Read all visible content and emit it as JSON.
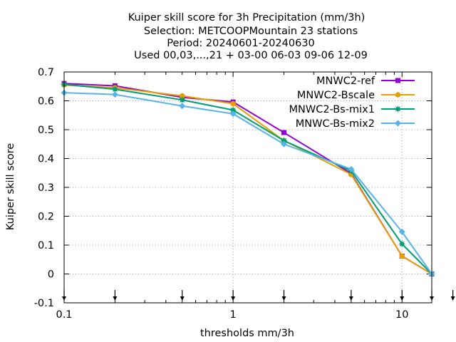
{
  "chart_data": {
    "type": "line",
    "title_lines": [
      "Kuiper skill score  for 3h Precipitation (mm/3h)",
      "Selection: METCOOPMountain     23 stations",
      "Period: 20240601-20240630",
      "Used 00,03,...,21 + 03-00 06-03 09-06 12-09"
    ],
    "xlabel": "thresholds mm/3h",
    "ylabel": "Kuiper skill score",
    "x_scale": "log",
    "xlim": [
      0.1,
      15
    ],
    "ylim": [
      -0.1,
      0.7
    ],
    "x_ticks": [
      0.1,
      1,
      10
    ],
    "x_tick_labels": [
      "0.1",
      "1",
      "10"
    ],
    "y_ticks": [
      -0.1,
      0,
      0.1,
      0.2,
      0.3,
      0.4,
      0.5,
      0.6,
      0.7
    ],
    "y_tick_labels": [
      "-0.1",
      "0",
      "0.1",
      "0.2",
      "0.3",
      "0.4",
      "0.5",
      "0.6",
      "0.7"
    ],
    "threshold_markers": [
      0.1,
      0.2,
      0.5,
      1,
      2,
      5,
      10,
      15,
      20
    ],
    "grid": true,
    "legend_position": "top-right",
    "x": [
      0.1,
      0.2,
      0.5,
      1,
      2,
      5,
      10,
      15
    ],
    "series": [
      {
        "name": "MNWC2-ref",
        "color": "#9400d3",
        "marker": "square",
        "values": [
          0.66,
          0.652,
          0.612,
          0.596,
          0.49,
          0.348,
          0.062,
          0.0
        ]
      },
      {
        "name": "MNWC2-Bscale",
        "color": "#e69f00",
        "marker": "circle",
        "values": [
          0.655,
          0.645,
          0.617,
          0.59,
          0.462,
          0.345,
          0.062,
          0.0
        ]
      },
      {
        "name": "MNWC2-Bs-mix1",
        "color": "#009e73",
        "marker": "star",
        "values": [
          0.657,
          0.64,
          0.603,
          0.568,
          0.462,
          0.357,
          0.104,
          0.0
        ]
      },
      {
        "name": "MNWC-Bs-mix2",
        "color": "#56b4e9",
        "marker": "diamond",
        "values": [
          0.628,
          0.622,
          0.582,
          0.555,
          0.45,
          0.363,
          0.146,
          0.0
        ]
      }
    ]
  }
}
